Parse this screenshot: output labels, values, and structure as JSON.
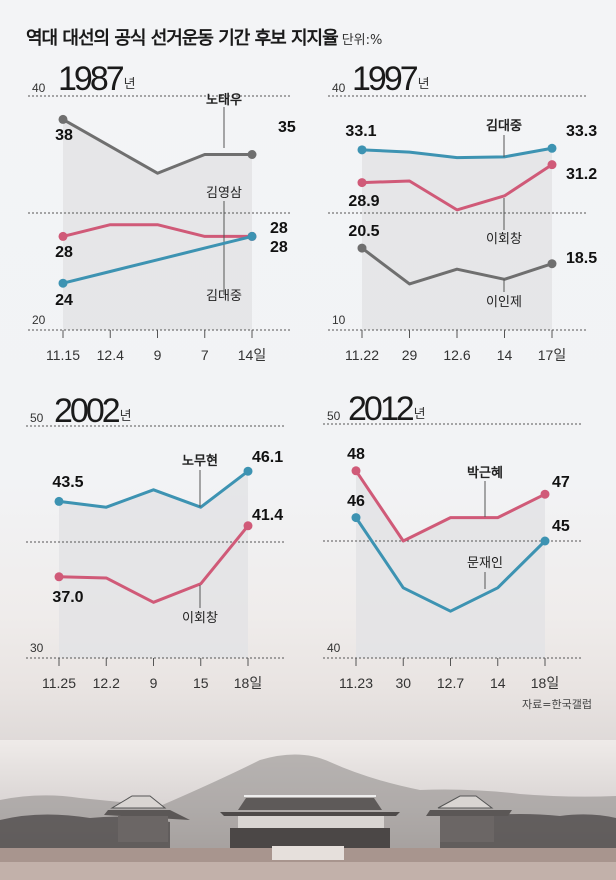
{
  "header": {
    "title": "역대 대선의 공식 선거운동 기간 후보 지지율",
    "unit": "단위:%"
  },
  "source": "자료=한국갤럽",
  "colors": {
    "blue": "#3d93b2",
    "red": "#d05a78",
    "gray": "#6f6f6f",
    "area": "#e3e3e5"
  },
  "chart_data": [
    {
      "type": "line",
      "title": "1987년",
      "year": "1987",
      "year_suffix": "년",
      "categories": [
        "11.15",
        "12.4",
        "9",
        "7",
        "14일"
      ],
      "ylim": [
        20,
        40
      ],
      "yticks": [
        "40",
        "20"
      ],
      "series": [
        {
          "name": "노태우",
          "color": "gray",
          "values": [
            38,
            35.7,
            33.4,
            35,
            35
          ],
          "start_label": "38",
          "end_label": "35",
          "bold_name": true
        },
        {
          "name": "김영삼",
          "color": "red",
          "values": [
            28,
            29,
            29,
            28,
            28
          ],
          "start_label": "28",
          "end_label": "28",
          "bold_name": false
        },
        {
          "name": "김대중",
          "color": "blue",
          "values": [
            24,
            25,
            26,
            27,
            28
          ],
          "start_label": "24",
          "end_label": "28",
          "bold_name": false
        }
      ]
    },
    {
      "type": "line",
      "title": "1997년",
      "year": "1997",
      "year_suffix": "년",
      "categories": [
        "11.22",
        "29",
        "12.6",
        "14",
        "17일"
      ],
      "ylim": [
        10,
        40
      ],
      "yticks": [
        "40",
        "10"
      ],
      "series": [
        {
          "name": "김대중",
          "color": "blue",
          "values": [
            33.1,
            32.8,
            32.1,
            32.2,
            33.3
          ],
          "start_label": "33.1",
          "end_label": "33.3",
          "bold_name": true
        },
        {
          "name": "이회창",
          "color": "red",
          "values": [
            28.9,
            29.1,
            25.4,
            27.2,
            31.2
          ],
          "start_label": "28.9",
          "end_label": "31.2",
          "bold_name": false
        },
        {
          "name": "이인제",
          "color": "gray",
          "values": [
            20.5,
            15.9,
            17.8,
            16.5,
            18.5
          ],
          "start_label": "20.5",
          "end_label": "18.5",
          "bold_name": false
        }
      ]
    },
    {
      "type": "line",
      "title": "2002년",
      "year": "2002",
      "year_suffix": "년",
      "categories": [
        "11.25",
        "12.2",
        "9",
        "15",
        "18일"
      ],
      "ylim": [
        30,
        50
      ],
      "yticks": [
        "50",
        "30"
      ],
      "series": [
        {
          "name": "노무현",
          "color": "blue",
          "values": [
            43.5,
            43.0,
            44.5,
            43.0,
            46.1
          ],
          "start_label": "43.5",
          "end_label": "46.1",
          "bold_name": true
        },
        {
          "name": "이회창",
          "color": "red",
          "values": [
            37.0,
            36.9,
            34.8,
            36.4,
            41.4
          ],
          "start_label": "37.0",
          "end_label": "41.4",
          "bold_name": false
        }
      ]
    },
    {
      "type": "line",
      "title": "2012년",
      "year": "2012",
      "year_suffix": "년",
      "categories": [
        "11.23",
        "30",
        "12.7",
        "14",
        "18일"
      ],
      "ylim": [
        40,
        50
      ],
      "yticks": [
        "50",
        "40"
      ],
      "series": [
        {
          "name": "박근혜",
          "color": "red",
          "values": [
            48,
            45,
            46,
            46,
            47
          ],
          "start_label": "48",
          "end_label": "47",
          "bold_name": true
        },
        {
          "name": "문재인",
          "color": "blue",
          "values": [
            46,
            43,
            42,
            43,
            45
          ],
          "start_label": "46",
          "end_label": "45",
          "bold_name": false
        }
      ]
    }
  ]
}
